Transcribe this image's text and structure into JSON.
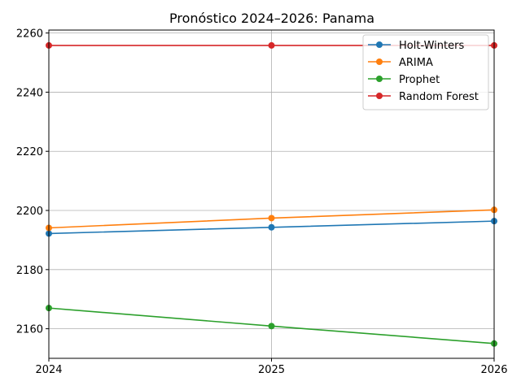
{
  "chart_data": {
    "type": "line",
    "title": "Pronóstico 2024–2026: Panama",
    "xlabel": "",
    "ylabel": "",
    "x": [
      "2024",
      "2025",
      "2026"
    ],
    "xlim": [
      2024,
      2026
    ],
    "ylim": [
      2150,
      2261
    ],
    "yticks": [
      2160,
      2180,
      2200,
      2220,
      2240,
      2260
    ],
    "grid": true,
    "legend_position": "upper right",
    "series": [
      {
        "name": "Holt-Winters",
        "color": "#1f77b4",
        "values": [
          2192.2,
          2194.3,
          2196.4
        ]
      },
      {
        "name": "ARIMA",
        "color": "#ff7f0e",
        "values": [
          2194.1,
          2197.4,
          2200.2
        ]
      },
      {
        "name": "Prophet",
        "color": "#2ca02c",
        "values": [
          2167.0,
          2160.9,
          2155.0
        ]
      },
      {
        "name": "Random Forest",
        "color": "#d62728",
        "values": [
          2255.8,
          2255.8,
          2255.8
        ]
      }
    ]
  }
}
